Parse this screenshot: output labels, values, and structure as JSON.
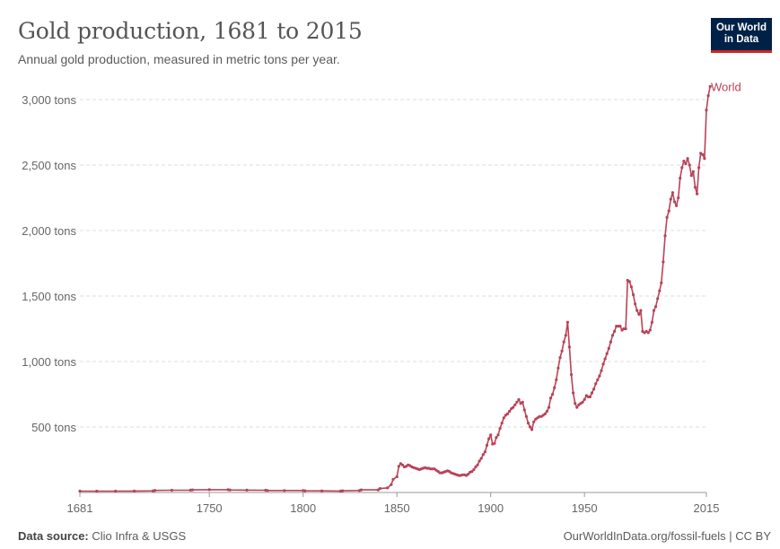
{
  "header": {
    "title": "Gold production, 1681 to 2015",
    "subtitle": "Annual gold production, measured in metric tons per year."
  },
  "logo": {
    "line1": "Our World",
    "line2": "in Data"
  },
  "footer": {
    "source_label": "Data source:",
    "source_value": "Clio Infra & USGS",
    "link": "OurWorldInData.org/fossil-fuels | CC BY"
  },
  "colors": {
    "series": "#b84357",
    "grid": "#dddddd",
    "axis": "#666666"
  },
  "chart_data": {
    "type": "line",
    "title": "Gold production, 1681 to 2015",
    "subtitle": "Annual gold production, measured in metric tons per year.",
    "xlabel": "",
    "ylabel": "",
    "xlim": [
      1681,
      2015
    ],
    "ylim": [
      0,
      3000
    ],
    "x_ticks": [
      1681,
      1750,
      1800,
      1850,
      1900,
      1950,
      2015
    ],
    "y_ticks": [
      {
        "value": 500,
        "label": "500 tons"
      },
      {
        "value": 1000,
        "label": "1,000 tons"
      },
      {
        "value": 1500,
        "label": "1,500 tons"
      },
      {
        "value": 2000,
        "label": "2,000 tons"
      },
      {
        "value": 2500,
        "label": "2,500 tons"
      },
      {
        "value": 3000,
        "label": "3,000 tons"
      }
    ],
    "grid": "horizontal dashed",
    "legend": "right, end of line",
    "series": [
      {
        "name": "World",
        "points": [
          [
            1681,
            10
          ],
          [
            1690,
            10
          ],
          [
            1700,
            10
          ],
          [
            1710,
            11
          ],
          [
            1720,
            12
          ],
          [
            1721,
            16
          ],
          [
            1730,
            17
          ],
          [
            1740,
            18
          ],
          [
            1741,
            20
          ],
          [
            1750,
            21
          ],
          [
            1760,
            21
          ],
          [
            1761,
            19
          ],
          [
            1770,
            18
          ],
          [
            1780,
            17
          ],
          [
            1781,
            15
          ],
          [
            1790,
            15
          ],
          [
            1800,
            15
          ],
          [
            1801,
            13
          ],
          [
            1810,
            12
          ],
          [
            1820,
            11
          ],
          [
            1821,
            13
          ],
          [
            1830,
            15
          ],
          [
            1831,
            20
          ],
          [
            1840,
            20
          ],
          [
            1841,
            30
          ],
          [
            1845,
            35
          ],
          [
            1847,
            60
          ],
          [
            1848,
            100
          ],
          [
            1850,
            120
          ],
          [
            1851,
            200
          ],
          [
            1852,
            220
          ],
          [
            1853,
            210
          ],
          [
            1854,
            195
          ],
          [
            1855,
            200
          ],
          [
            1856,
            210
          ],
          [
            1857,
            205
          ],
          [
            1858,
            195
          ],
          [
            1859,
            190
          ],
          [
            1860,
            185
          ],
          [
            1861,
            180
          ],
          [
            1862,
            175
          ],
          [
            1863,
            180
          ],
          [
            1864,
            185
          ],
          [
            1865,
            190
          ],
          [
            1866,
            185
          ],
          [
            1867,
            185
          ],
          [
            1868,
            180
          ],
          [
            1869,
            180
          ],
          [
            1870,
            180
          ],
          [
            1871,
            170
          ],
          [
            1872,
            160
          ],
          [
            1873,
            150
          ],
          [
            1874,
            150
          ],
          [
            1875,
            155
          ],
          [
            1876,
            160
          ],
          [
            1877,
            165
          ],
          [
            1878,
            160
          ],
          [
            1879,
            150
          ],
          [
            1880,
            145
          ],
          [
            1881,
            140
          ],
          [
            1882,
            135
          ],
          [
            1883,
            130
          ],
          [
            1884,
            130
          ],
          [
            1885,
            135
          ],
          [
            1886,
            135
          ],
          [
            1887,
            130
          ],
          [
            1888,
            140
          ],
          [
            1889,
            155
          ],
          [
            1890,
            160
          ],
          [
            1891,
            175
          ],
          [
            1892,
            195
          ],
          [
            1893,
            210
          ],
          [
            1894,
            240
          ],
          [
            1895,
            260
          ],
          [
            1896,
            290
          ],
          [
            1897,
            310
          ],
          [
            1898,
            360
          ],
          [
            1899,
            410
          ],
          [
            1900,
            440
          ],
          [
            1901,
            370
          ],
          [
            1902,
            375
          ],
          [
            1903,
            420
          ],
          [
            1904,
            440
          ],
          [
            1905,
            490
          ],
          [
            1906,
            530
          ],
          [
            1907,
            570
          ],
          [
            1908,
            590
          ],
          [
            1909,
            600
          ],
          [
            1910,
            620
          ],
          [
            1911,
            640
          ],
          [
            1912,
            650
          ],
          [
            1913,
            670
          ],
          [
            1914,
            690
          ],
          [
            1915,
            710
          ],
          [
            1916,
            680
          ],
          [
            1917,
            690
          ],
          [
            1918,
            630
          ],
          [
            1919,
            580
          ],
          [
            1920,
            530
          ],
          [
            1921,
            500
          ],
          [
            1922,
            480
          ],
          [
            1923,
            540
          ],
          [
            1924,
            560
          ],
          [
            1925,
            570
          ],
          [
            1926,
            580
          ],
          [
            1927,
            580
          ],
          [
            1928,
            590
          ],
          [
            1929,
            600
          ],
          [
            1930,
            620
          ],
          [
            1931,
            650
          ],
          [
            1932,
            720
          ],
          [
            1933,
            750
          ],
          [
            1934,
            800
          ],
          [
            1935,
            860
          ],
          [
            1936,
            950
          ],
          [
            1937,
            1030
          ],
          [
            1938,
            1080
          ],
          [
            1939,
            1150
          ],
          [
            1940,
            1200
          ],
          [
            1941,
            1300
          ],
          [
            1942,
            1110
          ],
          [
            1943,
            900
          ],
          [
            1944,
            760
          ],
          [
            1945,
            680
          ],
          [
            1946,
            650
          ],
          [
            1947,
            670
          ],
          [
            1948,
            680
          ],
          [
            1949,
            690
          ],
          [
            1950,
            710
          ],
          [
            1951,
            740
          ],
          [
            1952,
            730
          ],
          [
            1953,
            730
          ],
          [
            1954,
            760
          ],
          [
            1955,
            790
          ],
          [
            1956,
            830
          ],
          [
            1957,
            860
          ],
          [
            1958,
            890
          ],
          [
            1959,
            930
          ],
          [
            1960,
            980
          ],
          [
            1961,
            1020
          ],
          [
            1962,
            1060
          ],
          [
            1963,
            1100
          ],
          [
            1964,
            1150
          ],
          [
            1965,
            1200
          ],
          [
            1966,
            1230
          ],
          [
            1967,
            1270
          ],
          [
            1968,
            1270
          ],
          [
            1969,
            1270
          ],
          [
            1970,
            1240
          ],
          [
            1971,
            1250
          ],
          [
            1972,
            1250
          ],
          [
            1973,
            1620
          ],
          [
            1974,
            1610
          ],
          [
            1975,
            1570
          ],
          [
            1976,
            1510
          ],
          [
            1977,
            1440
          ],
          [
            1978,
            1390
          ],
          [
            1979,
            1360
          ],
          [
            1980,
            1390
          ],
          [
            1981,
            1230
          ],
          [
            1982,
            1220
          ],
          [
            1983,
            1230
          ],
          [
            1984,
            1220
          ],
          [
            1985,
            1240
          ],
          [
            1986,
            1300
          ],
          [
            1987,
            1390
          ],
          [
            1988,
            1420
          ],
          [
            1989,
            1480
          ],
          [
            1990,
            1540
          ],
          [
            1991,
            1600
          ],
          [
            1992,
            1760
          ],
          [
            1993,
            1960
          ],
          [
            1994,
            2100
          ],
          [
            1995,
            2150
          ],
          [
            1996,
            2240
          ],
          [
            1997,
            2290
          ],
          [
            1998,
            2220
          ],
          [
            1999,
            2190
          ],
          [
            2000,
            2250
          ],
          [
            2001,
            2400
          ],
          [
            2002,
            2480
          ],
          [
            2003,
            2530
          ],
          [
            2004,
            2510
          ],
          [
            2005,
            2550
          ],
          [
            2006,
            2500
          ],
          [
            2007,
            2420
          ],
          [
            2008,
            2450
          ],
          [
            2009,
            2330
          ],
          [
            2010,
            2280
          ],
          [
            2011,
            2480
          ],
          [
            2012,
            2590
          ],
          [
            2013,
            2580
          ],
          [
            2014,
            2550
          ],
          [
            2015,
            2920
          ],
          [
            2016,
            3030
          ],
          [
            2017,
            3100
          ]
        ]
      }
    ]
  }
}
